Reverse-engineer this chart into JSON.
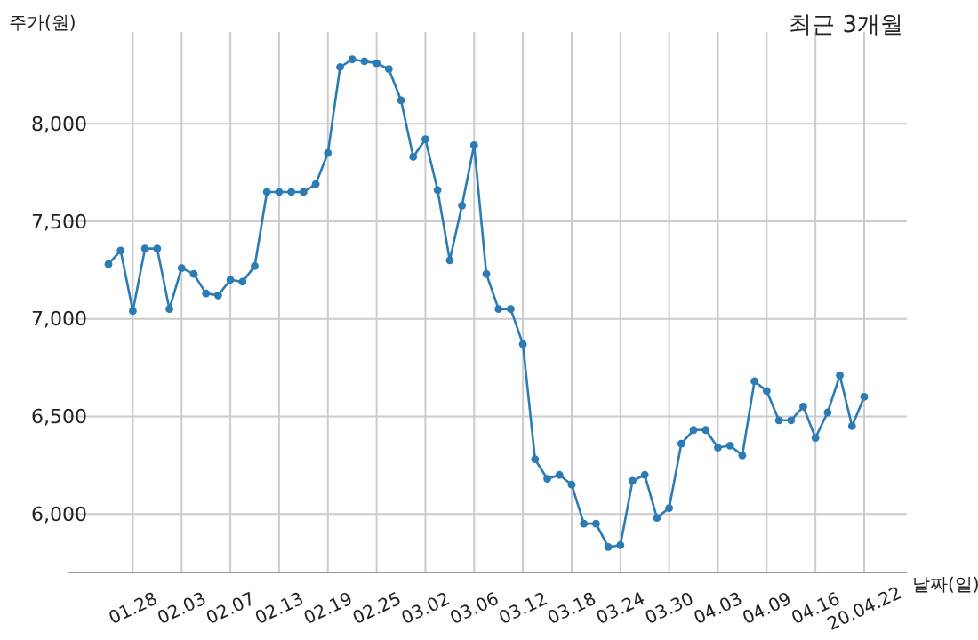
{
  "chart_data": {
    "type": "line",
    "title": "최근 3개월",
    "xlabel": "날짜(일)",
    "ylabel": "주가(원)",
    "categories": [
      null,
      null,
      "01.28",
      null,
      null,
      null,
      "02.03",
      null,
      null,
      null,
      "02.07",
      null,
      null,
      null,
      "02.13",
      null,
      null,
      null,
      "02.19",
      null,
      null,
      null,
      "02.25",
      null,
      null,
      null,
      "03.02",
      null,
      null,
      null,
      "03.06",
      null,
      null,
      null,
      "03.12",
      null,
      null,
      null,
      "03.18",
      null,
      null,
      null,
      "03.24",
      null,
      null,
      null,
      "03.30",
      null,
      null,
      null,
      "04.03",
      null,
      null,
      null,
      "04.09",
      null,
      null,
      null,
      "04.16",
      null,
      null,
      null,
      "20.04.22"
    ],
    "series": [
      {
        "color": "#2b7bb4",
        "values": [
          7280,
          7350,
          7040,
          7360,
          7360,
          7050,
          7260,
          7230,
          7130,
          7120,
          7200,
          7190,
          7270,
          7650,
          7650,
          7650,
          7650,
          7690,
          7850,
          8290,
          8330,
          8320,
          8310,
          8280,
          8120,
          7830,
          7920,
          7660,
          7300,
          7580,
          7890,
          7230,
          7050,
          7050,
          6870,
          6280,
          6180,
          6200,
          6150,
          5950,
          5950,
          5830,
          5840,
          6170,
          6200,
          5980,
          6030,
          6360,
          6430,
          6430,
          6340,
          6350,
          6300,
          6680,
          6630,
          6480,
          6480,
          6550,
          6390,
          6520,
          6710,
          6450,
          6600
        ]
      }
    ],
    "ylim": [
      5700,
      8470
    ],
    "yticks": [
      {
        "value": 6000,
        "label": "6,000"
      },
      {
        "value": 6500,
        "label": "6,500"
      },
      {
        "value": 7000,
        "label": "7,000"
      },
      {
        "value": 7500,
        "label": "7,500"
      },
      {
        "value": 8000,
        "label": "8,000"
      }
    ],
    "grid": true,
    "marker": "circle",
    "line_style": "solid"
  }
}
